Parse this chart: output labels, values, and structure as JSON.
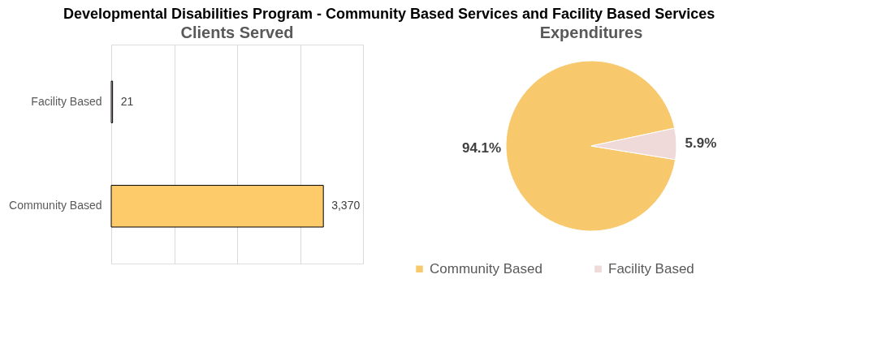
{
  "chart_data": [
    {
      "type": "bar",
      "title": "Clients Served",
      "orientation": "horizontal",
      "annotations": [
        "Developmental Disabilities Program  -  Community Based Services and Facility Based Services"
      ],
      "categories": [
        "Facility Based",
        "Community Based"
      ],
      "values": [
        21,
        3370
      ],
      "colors": [
        "#efd9d9",
        "#fdcb6a"
      ],
      "value_labels": [
        "21",
        "3,370"
      ],
      "xlim": [
        0,
        4000
      ],
      "xticks": [
        {
          "value": 0,
          "label": null
        },
        {
          "value": 1000,
          "label": null
        },
        {
          "value": 2000,
          "label": null
        },
        {
          "value": 3000,
          "label": null
        },
        {
          "value": 4000,
          "label": null
        }
      ],
      "grid": "x",
      "tick_labels": "y"
    },
    {
      "type": "pie",
      "title": "Expenditures",
      "categories": [
        "Community Based",
        "Facility Based"
      ],
      "values": [
        94.1,
        5.9
      ],
      "colors": [
        "#f8c96c",
        "#efd9d9"
      ],
      "value_labels": [
        "94.1%",
        "5.9%"
      ],
      "legend": "bottom"
    }
  ]
}
